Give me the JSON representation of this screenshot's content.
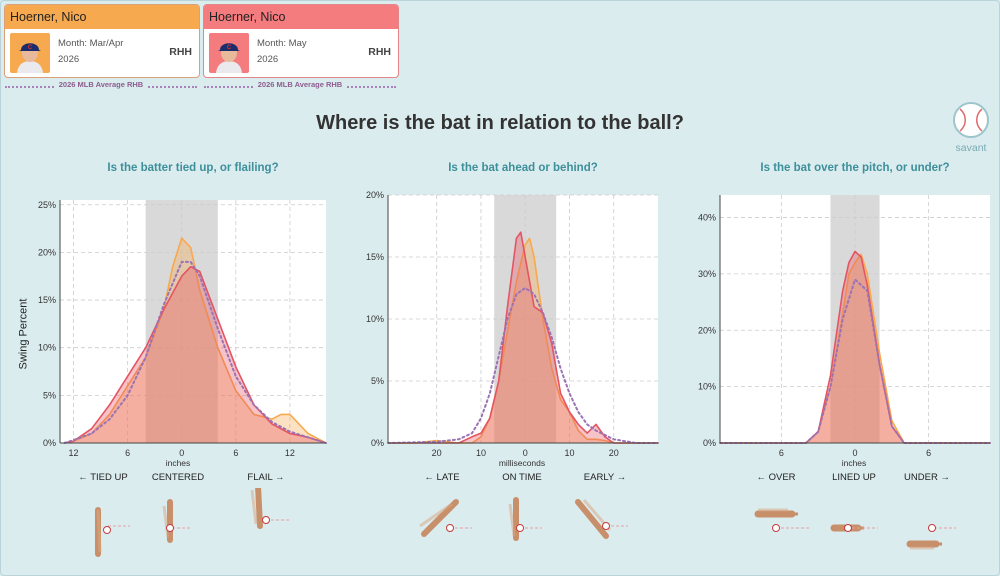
{
  "player_cards": [
    {
      "name": "Hoerner, Nico",
      "month": "Month: Mar/Apr",
      "season": "2026",
      "hand": "RHH",
      "color": "#f7a94f"
    },
    {
      "name": "Hoerner, Nico",
      "month": "Month: May",
      "season": "2026",
      "hand": "RHH",
      "color": "#f47b7e"
    }
  ],
  "average_label": "2026 MLB Average RHB",
  "page_title": "Where is the bat in relation to the ball?",
  "logo_text": "savant",
  "colors": {
    "series1": "#f7a94f",
    "series2": "#e55463",
    "average": "#9b72b4",
    "band": "#d9d9d9"
  },
  "chart_data": [
    {
      "type": "area",
      "title": "Is the batter tied up, or flailing?",
      "xlabel": "inches",
      "ylabel": "Swing Percent",
      "xlim": [
        -13.5,
        16
      ],
      "ylim": [
        0,
        25.5
      ],
      "x_reversed_ticks": true,
      "x_ticks": [
        -12,
        -6,
        0,
        6,
        12
      ],
      "x_tick_labels": [
        "12",
        "6",
        "0",
        "6",
        "12"
      ],
      "y_ticks": [
        0,
        5,
        10,
        15,
        20,
        25
      ],
      "y_tick_labels": [
        "0%",
        "5%",
        "10%",
        "15%",
        "20%",
        "25%"
      ],
      "band": [
        -4,
        4
      ],
      "direction_labels": [
        "← TIED UP",
        "CENTERED",
        "FLAIL →"
      ],
      "series": [
        {
          "name": "Month: Mar/Apr",
          "x": [
            -13,
            -12,
            -10,
            -8,
            -6,
            -4,
            -2,
            -1,
            0,
            1,
            2,
            4,
            6,
            8,
            10,
            11,
            12,
            14,
            16
          ],
          "values": [
            0,
            0.2,
            1,
            3,
            6,
            9,
            14,
            18.5,
            21.5,
            20.5,
            16,
            10,
            5.5,
            3,
            2.5,
            3,
            3,
            1,
            0
          ]
        },
        {
          "name": "Month: May",
          "x": [
            -13,
            -12,
            -10,
            -8,
            -6,
            -4,
            -2,
            0,
            1,
            2,
            4,
            6,
            8,
            10,
            12,
            14,
            16
          ],
          "values": [
            0,
            0.2,
            1.5,
            4,
            7,
            10,
            14,
            17.5,
            18.5,
            18,
            13,
            8,
            4,
            2,
            1,
            0.6,
            0
          ]
        },
        {
          "name": "2026 MLB Average RHB",
          "x": [
            -13,
            -12,
            -10,
            -8,
            -6,
            -4,
            -2,
            0,
            1,
            2,
            4,
            6,
            8,
            10,
            12,
            14,
            16
          ],
          "values": [
            0,
            0.3,
            1,
            2.5,
            5,
            9,
            14.5,
            19,
            19,
            17.5,
            12,
            7,
            4,
            2.2,
            1.2,
            0.6,
            0
          ]
        }
      ]
    },
    {
      "type": "area",
      "title": "Is the bat ahead or behind?",
      "xlabel": "milliseconds",
      "ylabel": "",
      "xlim": [
        -31,
        30
      ],
      "ylim": [
        0,
        20
      ],
      "x_reversed_ticks": true,
      "x_ticks": [
        -20,
        -10,
        0,
        10,
        20
      ],
      "x_tick_labels": [
        "20",
        "10",
        "0",
        "10",
        "20"
      ],
      "y_ticks": [
        0,
        5,
        10,
        15,
        20
      ],
      "y_tick_labels": [
        "0%",
        "5%",
        "10%",
        "15%",
        "20%"
      ],
      "band": [
        -7,
        7
      ],
      "direction_labels": [
        "← LATE",
        "ON TIME",
        "EARLY →"
      ],
      "series": [
        {
          "name": "Month: Mar/Apr",
          "x": [
            -31,
            -25,
            -20,
            -15,
            -12,
            -10,
            -8,
            -6,
            -4,
            -2,
            0,
            1,
            2,
            4,
            6,
            8,
            10,
            12,
            14,
            16,
            18,
            20,
            25,
            30
          ],
          "values": [
            0,
            0,
            0.2,
            0,
            0,
            0.5,
            2,
            5,
            9,
            13,
            16,
            16.5,
            15,
            10,
            6,
            3.5,
            2.5,
            1,
            0.3,
            0.3,
            0.2,
            0,
            0,
            0
          ]
        },
        {
          "name": "Month: May",
          "x": [
            -31,
            -20,
            -15,
            -12,
            -10,
            -8,
            -6,
            -4,
            -2,
            -1,
            0,
            2,
            4,
            6,
            8,
            10,
            12,
            14,
            16,
            18,
            20,
            25,
            30
          ],
          "values": [
            0,
            0,
            0,
            0.5,
            0.8,
            2,
            5,
            11,
            16.5,
            17,
            15,
            11,
            10.5,
            8,
            4,
            2.5,
            1.5,
            0.8,
            1.5,
            0.5,
            0,
            0,
            0
          ]
        },
        {
          "name": "2026 MLB Average RHB",
          "x": [
            -31,
            -20,
            -15,
            -12,
            -10,
            -8,
            -6,
            -4,
            -2,
            0,
            2,
            4,
            6,
            8,
            10,
            12,
            14,
            16,
            20,
            25,
            30
          ],
          "values": [
            0,
            0.1,
            0.3,
            0.8,
            2,
            4,
            7,
            10,
            12,
            12.5,
            12,
            10.5,
            8.5,
            6,
            4,
            2.5,
            1.5,
            1,
            0.3,
            0,
            0
          ]
        }
      ]
    },
    {
      "type": "area",
      "title": "Is the bat over the pitch, or under?",
      "xlabel": "inches",
      "ylabel": "",
      "xlim": [
        -11,
        11
      ],
      "ylim": [
        0,
        44
      ],
      "x_reversed_ticks": true,
      "x_ticks": [
        -6,
        0,
        6
      ],
      "x_tick_labels": [
        "6",
        "0",
        "6"
      ],
      "y_ticks": [
        0,
        10,
        20,
        30,
        40
      ],
      "y_tick_labels": [
        "0%",
        "10%",
        "20%",
        "30%",
        "40%"
      ],
      "band": [
        -2,
        2
      ],
      "direction_labels": [
        "← OVER",
        "LINED UP",
        "UNDER →"
      ],
      "series": [
        {
          "name": "Month: Mar/Apr",
          "x": [
            -11,
            -4,
            -3,
            -2,
            -1,
            -0.5,
            0,
            0.5,
            1,
            2,
            3,
            4,
            11
          ],
          "values": [
            0,
            0,
            2,
            10,
            23,
            30,
            32,
            33.5,
            30,
            16,
            4,
            0,
            0
          ]
        },
        {
          "name": "Month: May",
          "x": [
            -11,
            -4,
            -3,
            -2,
            -1,
            -0.5,
            0,
            0.5,
            1,
            2,
            3,
            4,
            11
          ],
          "values": [
            0,
            0,
            2,
            12,
            27,
            32,
            34,
            33,
            28,
            14,
            3,
            0,
            0
          ]
        },
        {
          "name": "2026 MLB Average RHB",
          "x": [
            -11,
            -4,
            -3,
            -2,
            -1,
            0,
            1,
            2,
            3,
            4,
            11
          ],
          "values": [
            0,
            0,
            2,
            10,
            22,
            29,
            27,
            14,
            3,
            0,
            0
          ]
        }
      ]
    }
  ]
}
